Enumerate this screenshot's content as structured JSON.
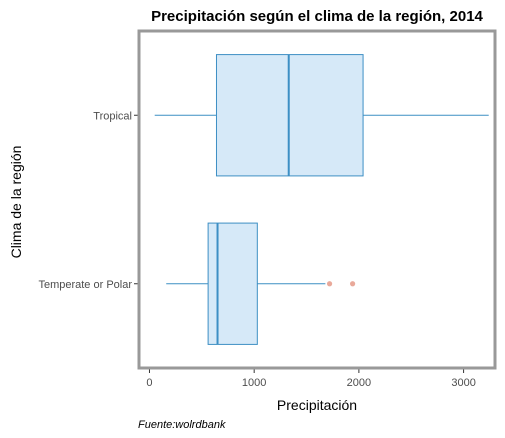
{
  "chart_data": {
    "type": "boxplot",
    "orientation": "horizontal",
    "title": "Precipitación según el clima de la región, 2014",
    "xlabel": "Precipitación",
    "ylabel": "Clima de la región",
    "caption": "Fuente:wolrdbank",
    "xlim": [
      -100,
      3300
    ],
    "x_ticks": [
      0,
      1000,
      2000,
      3000
    ],
    "grid": false,
    "categories": [
      "Temperate or Polar",
      "Tropical"
    ],
    "boxes": [
      {
        "category": "Temperate or Polar",
        "min": 160,
        "q1": 560,
        "median": 650,
        "q3": 1030,
        "max": 1680,
        "outliers": [
          1720,
          1940
        ]
      },
      {
        "category": "Tropical",
        "min": 50,
        "q1": 640,
        "median": 1330,
        "q3": 2040,
        "max": 3240,
        "outliers": []
      }
    ],
    "colors": {
      "box_fill": "#d6e9f8",
      "box_stroke": "#3d8fc4",
      "outlier": "#e9a99a",
      "panel_border": "#999999"
    }
  }
}
